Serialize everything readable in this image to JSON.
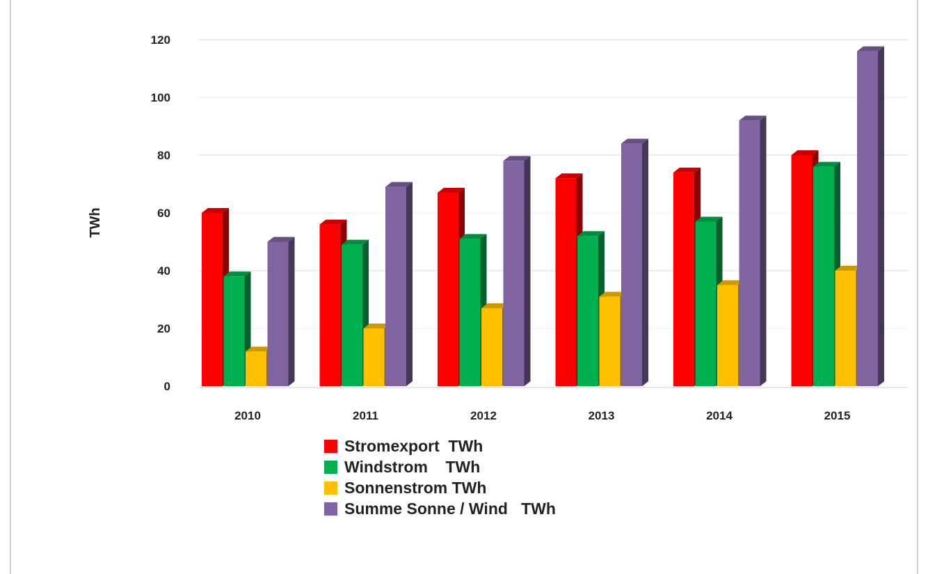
{
  "chart_data": {
    "type": "bar",
    "title": "",
    "xlabel": "",
    "ylabel": "TWh",
    "ylim": [
      0,
      120
    ],
    "yticks": [
      0,
      20,
      40,
      60,
      80,
      100,
      120
    ],
    "grid": true,
    "legend_position": "bottom",
    "style": "3d-columns",
    "categories": [
      "2010",
      "2011",
      "2012",
      "2013",
      "2014",
      "2015"
    ],
    "series": [
      {
        "name": "Stromexport  TWh",
        "color": "#ff0000",
        "values": [
          60,
          56,
          67,
          72,
          74,
          80
        ]
      },
      {
        "name": "Windstrom    TWh",
        "color": "#00b050",
        "values": [
          38,
          49,
          51,
          52,
          57,
          76
        ]
      },
      {
        "name": "Sonnenstrom TWh",
        "color": "#ffc000",
        "values": [
          12,
          20,
          27,
          31,
          35,
          40
        ]
      },
      {
        "name": "Summe Sonne / Wind   TWh",
        "color": "#8064a2",
        "values": [
          50,
          69,
          78,
          84,
          92,
          116
        ]
      }
    ]
  }
}
